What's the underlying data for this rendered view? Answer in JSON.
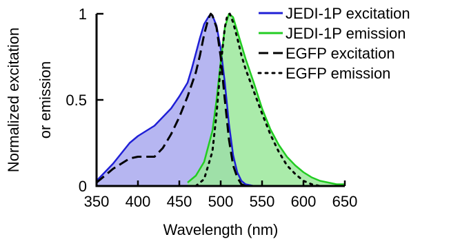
{
  "chart_data": {
    "type": "line",
    "xlabel": "Wavelength (nm)",
    "ylabel_lines": [
      "Normalized excitation",
      "or emission"
    ],
    "xlim": [
      350,
      650
    ],
    "ylim": [
      0,
      1
    ],
    "xticks": [
      350,
      400,
      450,
      500,
      550,
      600,
      650
    ],
    "yticks": [
      0,
      0.5,
      1
    ],
    "ytick_labels": [
      "0",
      "0.5",
      "1"
    ],
    "grid": false,
    "legend_position": "top-right",
    "series": [
      {
        "name": "JEDI-1P excitation",
        "color": "#1f1fd6",
        "fill": "#a9a9ee",
        "style": "solid",
        "x": [
          350,
          360,
          370,
          380,
          390,
          400,
          410,
          420,
          430,
          440,
          450,
          460,
          465,
          470,
          475,
          480,
          485,
          488,
          490,
          495,
          500,
          505,
          510,
          515,
          520,
          525,
          530,
          535,
          540
        ],
        "y": [
          0.03,
          0.08,
          0.13,
          0.19,
          0.25,
          0.29,
          0.32,
          0.35,
          0.4,
          0.45,
          0.52,
          0.6,
          0.68,
          0.77,
          0.86,
          0.94,
          0.98,
          1.0,
          0.99,
          0.93,
          0.8,
          0.6,
          0.36,
          0.18,
          0.08,
          0.03,
          0.01,
          0.005,
          0.0
        ]
      },
      {
        "name": "JEDI-1P emission",
        "color": "#22cc22",
        "fill": "#9be89b",
        "style": "solid",
        "x": [
          460,
          470,
          480,
          490,
          495,
          500,
          505,
          510,
          515,
          520,
          525,
          530,
          540,
          550,
          560,
          570,
          580,
          590,
          600,
          610,
          620,
          630,
          640,
          650
        ],
        "y": [
          0.02,
          0.06,
          0.14,
          0.32,
          0.5,
          0.72,
          0.92,
          1.0,
          0.98,
          0.9,
          0.82,
          0.74,
          0.6,
          0.45,
          0.33,
          0.24,
          0.17,
          0.12,
          0.08,
          0.05,
          0.03,
          0.02,
          0.01,
          0.01
        ]
      },
      {
        "name": "EGFP excitation",
        "color": "#000000",
        "style": "dashed",
        "x": [
          350,
          360,
          370,
          380,
          390,
          400,
          410,
          420,
          430,
          440,
          450,
          460,
          470,
          475,
          480,
          485,
          488,
          490,
          495,
          500,
          505,
          510,
          515,
          520,
          525,
          530
        ],
        "y": [
          0.02,
          0.06,
          0.1,
          0.13,
          0.16,
          0.17,
          0.17,
          0.17,
          0.22,
          0.3,
          0.4,
          0.52,
          0.66,
          0.76,
          0.88,
          0.97,
          1.0,
          0.99,
          0.92,
          0.75,
          0.5,
          0.27,
          0.12,
          0.05,
          0.01,
          0.0
        ]
      },
      {
        "name": "EGFP emission",
        "color": "#000000",
        "style": "dotted",
        "x": [
          470,
          480,
          490,
          495,
          500,
          505,
          508,
          511,
          515,
          520,
          525,
          530,
          540,
          550,
          560,
          570,
          580,
          590,
          600,
          610,
          620
        ],
        "y": [
          0.0,
          0.04,
          0.2,
          0.42,
          0.7,
          0.92,
          0.99,
          1.0,
          0.95,
          0.86,
          0.76,
          0.68,
          0.55,
          0.42,
          0.3,
          0.2,
          0.12,
          0.07,
          0.03,
          0.01,
          0.0
        ]
      }
    ]
  }
}
